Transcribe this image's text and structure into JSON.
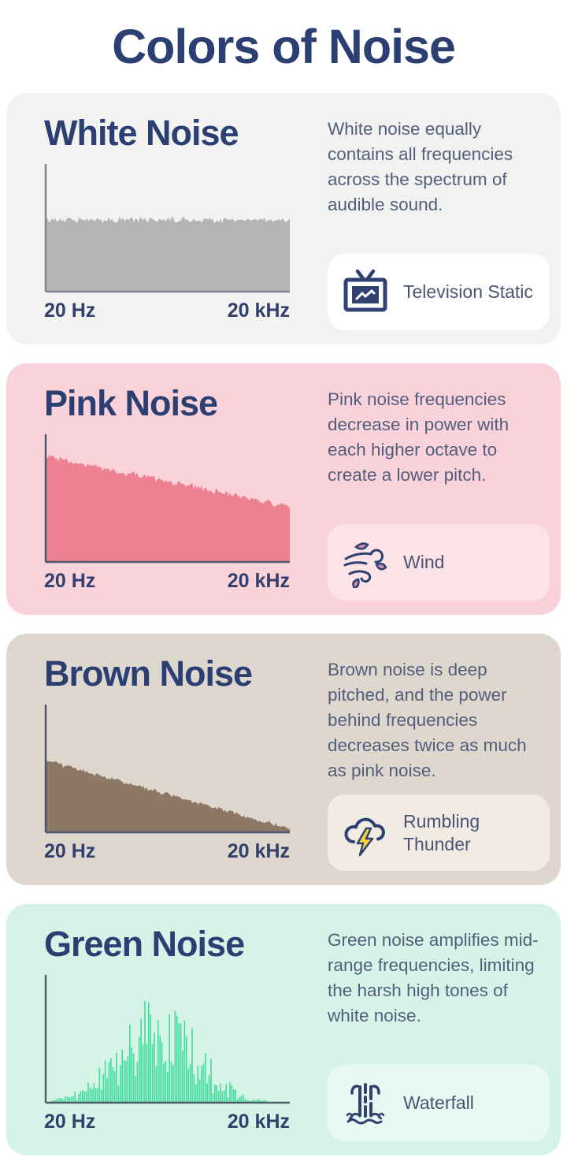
{
  "title": "Colors of Noise",
  "palette": {
    "heading_navy": "#2c3f72",
    "body_text": "#535e7e",
    "axis_label_text": "#323f6d",
    "example_label_text": "#4b5474",
    "icon_navy": "#2e4170",
    "leaf_pink": "#cf8bb1",
    "bolt_yellow": "#f6d23c"
  },
  "sections": [
    {
      "name": "White Noise",
      "description": "White noise equally contains all frequencies across the spectrum of audible sound.",
      "bg": "#f2f2f1",
      "card_bg": "#ffffff",
      "example": {
        "label": "Television Static",
        "icon": "television-static-icon"
      }
    },
    {
      "name": "Pink Noise",
      "description": "Pink noise frequencies decrease in power with each higher octave to create a lower pitch.",
      "bg": "#f9d3d9",
      "card_bg": "#fbe3e7",
      "example": {
        "label": "Wind",
        "icon": "wind-icon"
      }
    },
    {
      "name": "Brown Noise",
      "description": "Brown noise is deep pitched, and the power behind frequencies decreases twice as much as pink noise.",
      "bg": "#ded7cd",
      "card_bg": "#f1ebe4",
      "example": {
        "label": "Rumbling Thunder",
        "icon": "rumbling-thunder-icon"
      }
    },
    {
      "name": "Green Noise",
      "description": "Green noise amplifies mid-range frequencies, limiting the harsh high tones of white noise.",
      "bg": "#d5f3e6",
      "card_bg": "#e7f9f1",
      "example": {
        "label": "Waterfall",
        "icon": "waterfall-icon"
      }
    }
  ],
  "chart_data": [
    {
      "id": "white-noise-spectrum",
      "type": "area",
      "title": "White Noise power spectrum",
      "xlabel_left": "20 Hz",
      "xlabel_right": "20 kHz",
      "y": "relative power (unlabeled)",
      "envelope": {
        "start_pct": 57,
        "end_pct": 57,
        "jitter_pct": 3
      },
      "fill": "#b5b5b5",
      "axis_color": "#80868f",
      "note": "flat spectrum: equal power at all frequencies"
    },
    {
      "id": "pink-noise-spectrum",
      "type": "area",
      "title": "Pink Noise power spectrum",
      "xlabel_left": "20 Hz",
      "xlabel_right": "20 kHz",
      "y": "relative power (unlabeled)",
      "envelope": {
        "start_pct": 84,
        "end_pct": 44,
        "jitter_pct": 3
      },
      "fill": "#ec8191",
      "axis_color": "#4d5670",
      "note": "gentle linear decline from low to high frequency"
    },
    {
      "id": "brown-noise-spectrum",
      "type": "area",
      "title": "Brown Noise power spectrum",
      "xlabel_left": "20 Hz",
      "xlabel_right": "20 kHz",
      "y": "relative power (unlabeled)",
      "envelope": {
        "start_pct": 57,
        "end_pct": 3,
        "jitter_pct": 2
      },
      "fill": "#8d7765",
      "axis_color": "#4d5670",
      "note": "steep decline to near zero at high frequency"
    },
    {
      "id": "green-noise-spectrum",
      "type": "spikes",
      "title": "Green Noise power spectrum",
      "xlabel_left": "20 Hz",
      "xlabel_right": "20 kHz",
      "y": "relative power (unlabeled)",
      "envelope": {
        "center_pct": 46,
        "sigma_pct": 16,
        "peak_pct": 90
      },
      "stroke": "#3edd9c",
      "axis_color": "#4d5f66",
      "note": "bell-shaped burst of spikes concentrated in mid-range frequencies"
    }
  ]
}
